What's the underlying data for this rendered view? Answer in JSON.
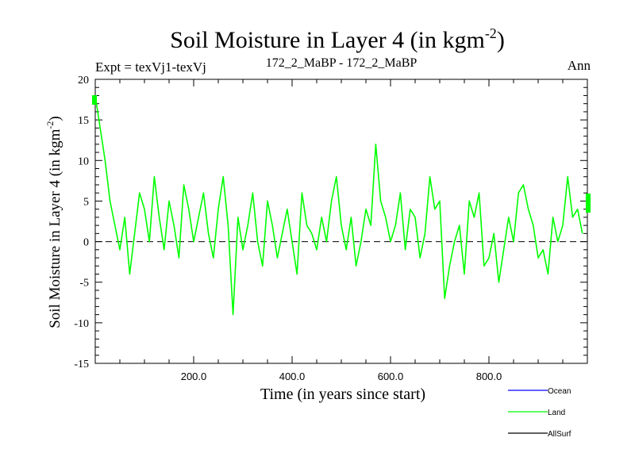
{
  "chart_data": {
    "type": "line",
    "title_main": "Soil Moisture in Layer 4 (in kgm",
    "title_sup": "-2",
    "title_close": ")",
    "subtitle_left": "Expt = texVj1-texVj",
    "subtitle_center": "172_2_MaBP - 172_2_MaBP",
    "subtitle_right": "Ann",
    "xlabel": "Time (in years since start)",
    "ylabel_main": "Soil Moisture in Layer 4 (in kgm",
    "ylabel_sup": "-2",
    "ylabel_close": ")",
    "xlim": [
      0,
      1000
    ],
    "ylim": [
      -15,
      20
    ],
    "x_ticks": [
      200,
      400,
      600,
      800
    ],
    "x_tick_labels": [
      "200.0",
      "400.0",
      "600.0",
      "800.0"
    ],
    "y_ticks": [
      -15,
      -10,
      -5,
      0,
      5,
      10,
      15,
      20
    ],
    "y_tick_labels": [
      "-15",
      "-10",
      "-5",
      "0",
      "5",
      "10",
      "15",
      "20"
    ],
    "zero_line": true,
    "legend_position": "bottom-right",
    "series": [
      {
        "name": "Ocean",
        "color": "#0000ff",
        "values": []
      },
      {
        "name": "AllSurf",
        "color": "#000000",
        "values": []
      },
      {
        "name": "Land",
        "color": "#00ff00",
        "x_start": 0,
        "x_step": 10,
        "values": [
          18,
          14,
          10,
          5,
          2,
          -1,
          3,
          -4,
          1,
          6,
          4,
          0,
          8,
          3,
          -1,
          5,
          2,
          -2,
          7,
          4,
          0,
          3,
          6,
          1,
          -2,
          4,
          8,
          2,
          -9,
          3,
          -1,
          2,
          6,
          0,
          -3,
          5,
          2,
          -2,
          1,
          4,
          0,
          -4,
          6,
          2,
          1,
          -1,
          3,
          0,
          5,
          8,
          2,
          -1,
          3,
          -3,
          0,
          4,
          2,
          12,
          5,
          3,
          0,
          2,
          6,
          -1,
          4,
          3,
          -2,
          1,
          8,
          4,
          5,
          -7,
          -3,
          0,
          2,
          -4,
          5,
          3,
          6,
          -3,
          -2,
          1,
          -5,
          -1,
          3,
          0,
          6,
          7,
          4,
          2,
          -2,
          -1,
          -4,
          3,
          0,
          2,
          8,
          3,
          4,
          1
        ]
      }
    ]
  }
}
